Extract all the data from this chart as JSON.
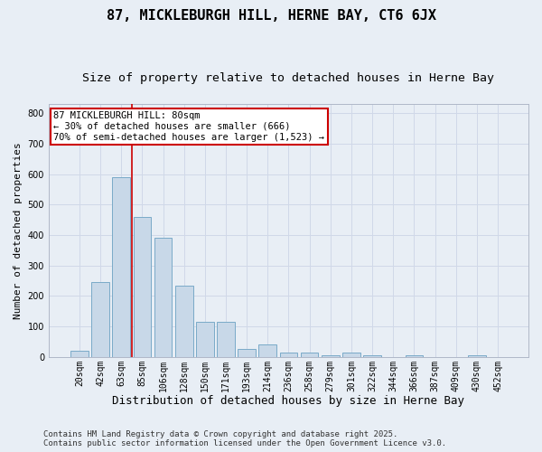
{
  "title": "87, MICKLEBURGH HILL, HERNE BAY, CT6 6JX",
  "subtitle": "Size of property relative to detached houses in Herne Bay",
  "xlabel": "Distribution of detached houses by size in Herne Bay",
  "ylabel": "Number of detached properties",
  "footer_line1": "Contains HM Land Registry data © Crown copyright and database right 2025.",
  "footer_line2": "Contains public sector information licensed under the Open Government Licence v3.0.",
  "categories": [
    "20sqm",
    "42sqm",
    "63sqm",
    "85sqm",
    "106sqm",
    "128sqm",
    "150sqm",
    "171sqm",
    "193sqm",
    "214sqm",
    "236sqm",
    "258sqm",
    "279sqm",
    "301sqm",
    "322sqm",
    "344sqm",
    "366sqm",
    "387sqm",
    "409sqm",
    "430sqm",
    "452sqm"
  ],
  "values": [
    20,
    245,
    590,
    460,
    390,
    235,
    115,
    115,
    25,
    40,
    15,
    15,
    5,
    15,
    5,
    0,
    5,
    0,
    0,
    5,
    0
  ],
  "bar_color": "#c8d8e8",
  "bar_edge_color": "#7aaac8",
  "vline_position": 2.5,
  "vline_color": "#cc0000",
  "annotation_text": "87 MICKLEBURGH HILL: 80sqm\n← 30% of detached houses are smaller (666)\n70% of semi-detached houses are larger (1,523) →",
  "annotation_box_color": "#ffffff",
  "annotation_box_edge_color": "#cc0000",
  "ylim": [
    0,
    830
  ],
  "yticks": [
    0,
    100,
    200,
    300,
    400,
    500,
    600,
    700,
    800
  ],
  "grid_color": "#d0d8e8",
  "background_color": "#e8eef5",
  "title_fontsize": 11,
  "subtitle_fontsize": 9.5,
  "xlabel_fontsize": 9,
  "ylabel_fontsize": 8,
  "tick_fontsize": 7,
  "annotation_fontsize": 7.5,
  "footer_fontsize": 6.5
}
